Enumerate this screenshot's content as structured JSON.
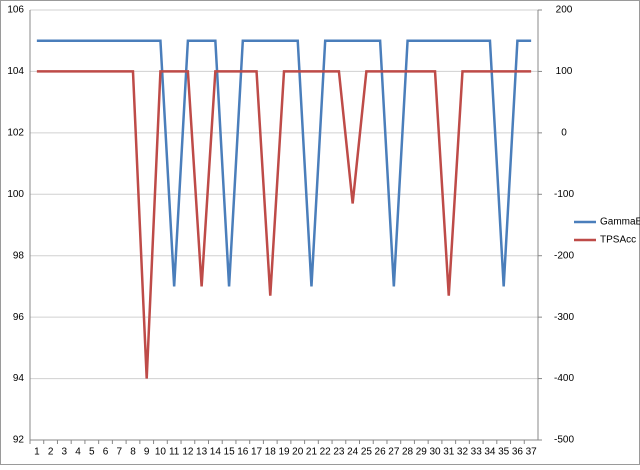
{
  "chart_data": {
    "type": "line",
    "categories": [
      "1",
      "2",
      "3",
      "4",
      "5",
      "6",
      "7",
      "8",
      "9",
      "10",
      "11",
      "12",
      "13",
      "14",
      "15",
      "16",
      "17",
      "18",
      "19",
      "20",
      "21",
      "22",
      "23",
      "24",
      "25",
      "26",
      "27",
      "28",
      "29",
      "30",
      "31",
      "32",
      "33",
      "34",
      "35",
      "36",
      "37"
    ],
    "series": [
      {
        "name": "GammaE",
        "color": "#4a7ebb",
        "values": [
          105,
          105,
          105,
          105,
          105,
          105,
          105,
          105,
          105,
          105,
          97,
          105,
          105,
          105,
          97,
          105,
          105,
          105,
          105,
          105,
          97,
          105,
          105,
          105,
          105,
          105,
          97,
          105,
          105,
          105,
          105,
          105,
          105,
          105,
          97,
          105,
          105
        ]
      },
      {
        "name": "TPSAcc",
        "color": "#be4b48",
        "axis": "y2",
        "values": [
          100,
          100,
          100,
          100,
          100,
          100,
          100,
          100,
          -400,
          100,
          100,
          100,
          -250,
          100,
          100,
          100,
          100,
          -265,
          100,
          100,
          100,
          100,
          100,
          -115,
          100,
          100,
          100,
          100,
          100,
          100,
          -265,
          100,
          100,
          100,
          100,
          100,
          100
        ]
      }
    ],
    "ylim": [
      92,
      106
    ],
    "yticks": [
      92,
      94,
      96,
      98,
      100,
      102,
      104,
      106
    ],
    "y2lim": [
      -500,
      200
    ],
    "y2ticks": [
      -500,
      -400,
      -300,
      -200,
      -100,
      0,
      100,
      200
    ],
    "grid": true,
    "legend": "right"
  }
}
